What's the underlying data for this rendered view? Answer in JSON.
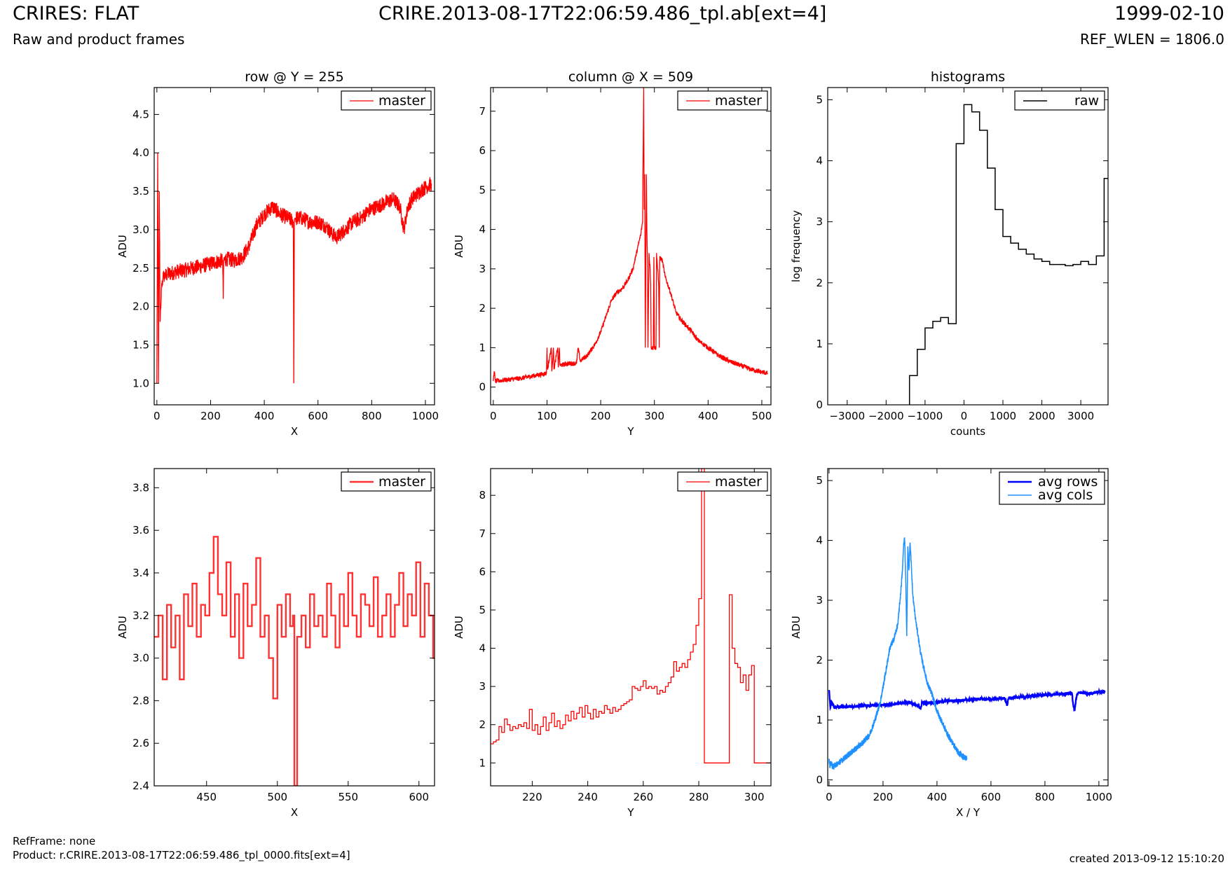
{
  "header": {
    "title": "CRIRES: FLAT",
    "subtitle": "Raw and product frames",
    "filename": "CRIRE.2013-08-17T22:06:59.486_tpl.ab[ext=4]",
    "date": "1999-02-10",
    "ref_wlen": "REF_WLEN = 1806.0"
  },
  "footer": {
    "refframe": "RefFrame: none",
    "product": "Product: r.CRIRE.2013-08-17T22:06:59.486_tpl_0000.fits[ext=4]",
    "created": "created 2013-09-12 15:10:20"
  },
  "colors": {
    "master": "#ff0000",
    "master_zoom": "#ff3333",
    "raw": "#000000",
    "avg_rows": "#0000ff",
    "avg_cols": "#1e90ff"
  },
  "chart_data": [
    {
      "id": "row",
      "type": "line",
      "title": "row @ Y = 255",
      "xlabel": "X",
      "ylabel": "ADU",
      "xlim": [
        -10,
        1034
      ],
      "ylim": [
        0.72,
        4.85
      ],
      "xticks": [
        0,
        200,
        400,
        600,
        800,
        1000
      ],
      "yticks": [
        1.0,
        1.5,
        2.0,
        2.5,
        3.0,
        3.5,
        4.0,
        4.5
      ],
      "ytick_decimals": 1,
      "legend": "upper right",
      "series": [
        {
          "name": "master",
          "color": "#ff0000",
          "style": "line",
          "stroke_width": 1.3,
          "x": [
            0,
            3,
            6,
            9,
            12,
            15,
            18,
            22,
            26,
            30,
            40,
            60,
            80,
            100,
            130,
            160,
            190,
            220,
            245,
            247,
            249,
            260,
            290,
            320,
            345,
            370,
            400,
            430,
            460,
            490,
            508,
            510,
            512,
            514,
            516,
            540,
            570,
            600,
            630,
            650,
            670,
            700,
            730,
            760,
            790,
            820,
            850,
            880,
            905,
            920,
            935,
            950,
            980,
            1000,
            1023
          ],
          "y": [
            1.0,
            4.0,
            1.0,
            3.5,
            1.8,
            2.0,
            2.3,
            2.35,
            2.4,
            2.4,
            2.42,
            2.44,
            2.46,
            2.47,
            2.5,
            2.52,
            2.55,
            2.58,
            2.6,
            2.1,
            2.6,
            2.62,
            2.6,
            2.65,
            2.8,
            3.05,
            3.2,
            3.3,
            3.2,
            3.15,
            3.1,
            1.0,
            3.1,
            3.15,
            3.15,
            3.15,
            3.1,
            3.1,
            3.05,
            2.95,
            2.9,
            3.0,
            3.1,
            3.15,
            3.25,
            3.3,
            3.35,
            3.4,
            3.3,
            3.0,
            3.3,
            3.4,
            3.5,
            3.55,
            3.6
          ],
          "noise": 0.1
        }
      ]
    },
    {
      "id": "column",
      "type": "line",
      "title": "column @ X = 509",
      "xlabel": "Y",
      "ylabel": "ADU",
      "xlim": [
        -5,
        517
      ],
      "ylim": [
        -0.45,
        7.6
      ],
      "xticks": [
        0,
        100,
        200,
        300,
        400,
        500
      ],
      "yticks": [
        0,
        1,
        2,
        3,
        4,
        5,
        6,
        7
      ],
      "ytick_decimals": 0,
      "legend": "upper right",
      "series": [
        {
          "name": "master",
          "color": "#ff0000",
          "style": "line",
          "stroke_width": 1.3,
          "x": [
            0,
            2,
            4,
            20,
            50,
            80,
            99,
            100,
            101,
            108,
            109,
            112,
            113,
            120,
            121,
            123,
            124,
            140,
            155,
            158,
            162,
            165,
            175,
            190,
            200,
            210,
            220,
            230,
            240,
            250,
            260,
            265,
            270,
            275,
            278,
            280,
            281,
            282,
            283,
            285,
            286,
            287,
            288,
            290,
            292,
            293,
            294,
            298,
            299,
            300,
            303,
            304,
            308,
            309,
            310,
            315,
            320,
            330,
            340,
            350,
            360,
            370,
            380,
            400,
            420,
            440,
            460,
            480,
            500,
            511
          ],
          "y": [
            0.15,
            0.4,
            0.15,
            0.18,
            0.22,
            0.3,
            0.35,
            1.0,
            0.45,
            1.0,
            0.4,
            1.0,
            0.45,
            1.0,
            0.5,
            1.0,
            0.55,
            0.6,
            0.6,
            1.0,
            0.65,
            0.7,
            0.8,
            1.1,
            1.4,
            1.8,
            2.2,
            2.4,
            2.5,
            2.7,
            3.0,
            3.3,
            3.6,
            3.9,
            4.2,
            7.6,
            4.5,
            5.4,
            1.0,
            5.4,
            4.0,
            3.3,
            1.0,
            3.4,
            3.0,
            2.6,
            1.0,
            1.0,
            3.3,
            1.0,
            1.0,
            3.4,
            2.6,
            1.0,
            3.3,
            3.2,
            2.8,
            2.4,
            1.9,
            1.7,
            1.55,
            1.4,
            1.2,
            1.0,
            0.8,
            0.65,
            0.55,
            0.45,
            0.38,
            0.35
          ],
          "noise": 0.06
        }
      ]
    },
    {
      "id": "hist",
      "type": "bar",
      "title": "histograms",
      "xlabel": "counts",
      "ylabel": "log frequency",
      "xlim": [
        -3500,
        3700
      ],
      "ylim": [
        0,
        5.2
      ],
      "xticks": [
        -3000,
        -2000,
        -1000,
        0,
        1000,
        2000,
        3000
      ],
      "yticks": [
        0,
        1,
        2,
        3,
        4,
        5
      ],
      "ytick_decimals": 0,
      "legend": "upper right",
      "series": [
        {
          "name": "raw",
          "color": "#000000",
          "style": "steps",
          "stroke_width": 1.5,
          "edges": [
            -1400,
            -1200,
            -1000,
            -800,
            -600,
            -400,
            -200,
            0,
            200,
            400,
            600,
            800,
            1000,
            1200,
            1400,
            1600,
            1800,
            2000,
            2200,
            2400,
            2600,
            2800,
            3000,
            3200,
            3400,
            3600
          ],
          "values": [
            0.48,
            0.91,
            1.26,
            1.37,
            1.43,
            1.33,
            4.28,
            4.92,
            4.8,
            4.5,
            3.88,
            3.2,
            2.76,
            2.65,
            2.55,
            2.47,
            2.39,
            2.35,
            2.3,
            2.3,
            2.28,
            2.3,
            2.35,
            2.3,
            2.44,
            3.71
          ]
        }
      ]
    },
    {
      "id": "row_zoom",
      "type": "line",
      "title": "",
      "xlabel": "X",
      "ylabel": "ADU",
      "xlim": [
        413,
        611
      ],
      "ylim": [
        2.4,
        3.89
      ],
      "xticks": [
        450,
        500,
        550,
        600
      ],
      "yticks": [
        2.4,
        2.6,
        2.8,
        3.0,
        3.2,
        3.4,
        3.6,
        3.8
      ],
      "ytick_decimals": 1,
      "legend": "upper right",
      "series": [
        {
          "name": "master",
          "color": "#ff3333",
          "style": "steps",
          "stroke_width": 2.4,
          "x": [
            413,
            416,
            419,
            422,
            425,
            428,
            431,
            434,
            437,
            440,
            443,
            446,
            449,
            452,
            455,
            458,
            461,
            464,
            467,
            470,
            473,
            476,
            479,
            482,
            485,
            488,
            491,
            494,
            497,
            500,
            503,
            506,
            509,
            511,
            512,
            514,
            517,
            520,
            523,
            526,
            529,
            532,
            535,
            538,
            541,
            544,
            547,
            550,
            553,
            556,
            559,
            562,
            565,
            568,
            571,
            574,
            577,
            580,
            583,
            586,
            589,
            592,
            595,
            598,
            601,
            604,
            607,
            610
          ],
          "y": [
            3.1,
            3.2,
            2.9,
            3.25,
            3.05,
            3.2,
            2.9,
            3.3,
            3.15,
            3.35,
            3.1,
            3.25,
            3.2,
            3.4,
            3.57,
            3.3,
            3.2,
            3.45,
            3.1,
            3.3,
            3.0,
            3.35,
            3.15,
            3.25,
            3.47,
            3.1,
            3.2,
            3.0,
            2.81,
            3.25,
            3.1,
            3.3,
            3.15,
            3.2,
            2.4,
            3.1,
            3.2,
            3.05,
            3.3,
            3.15,
            3.2,
            3.1,
            3.35,
            3.2,
            3.05,
            3.3,
            3.15,
            3.4,
            3.2,
            3.1,
            3.3,
            3.25,
            3.15,
            3.38,
            3.1,
            3.2,
            3.3,
            3.1,
            3.25,
            3.4,
            3.15,
            3.3,
            3.2,
            3.45,
            3.1,
            3.35,
            3.2,
            3.0
          ]
        }
      ]
    },
    {
      "id": "column_zoom",
      "type": "line",
      "title": "",
      "xlabel": "Y",
      "ylabel": "ADU",
      "xlim": [
        205,
        306
      ],
      "ylim": [
        0.4,
        8.7
      ],
      "xticks": [
        220,
        240,
        260,
        280,
        300
      ],
      "yticks": [
        1,
        2,
        3,
        4,
        5,
        6,
        7,
        8
      ],
      "ytick_decimals": 0,
      "legend": "upper right",
      "series": [
        {
          "name": "master",
          "color": "#ff0000",
          "style": "steps",
          "stroke_width": 1.3,
          "x": [
            205,
            206,
            207,
            208,
            209,
            210,
            211,
            212,
            213,
            214,
            215,
            216,
            217,
            218,
            219,
            220,
            221,
            222,
            223,
            224,
            225,
            226,
            227,
            228,
            229,
            230,
            231,
            232,
            233,
            234,
            235,
            236,
            237,
            238,
            239,
            240,
            241,
            242,
            243,
            244,
            245,
            246,
            247,
            248,
            249,
            250,
            251,
            252,
            253,
            254,
            255,
            256,
            257,
            258,
            259,
            260,
            261,
            262,
            263,
            264,
            265,
            266,
            267,
            268,
            269,
            270,
            271,
            272,
            273,
            274,
            275,
            276,
            277,
            278,
            279,
            280,
            281,
            282,
            283,
            284,
            285,
            286,
            287,
            288,
            289,
            290,
            291,
            292,
            293,
            294,
            295,
            296,
            297,
            298,
            299,
            300,
            301,
            302,
            303,
            304,
            305
          ],
          "y": [
            1.5,
            1.55,
            1.6,
            1.95,
            1.8,
            2.15,
            2.0,
            1.85,
            1.95,
            1.9,
            2.0,
            1.95,
            2.05,
            1.9,
            2.4,
            1.85,
            2.0,
            1.75,
            1.95,
            2.2,
            1.85,
            2.05,
            2.3,
            1.95,
            2.1,
            1.9,
            2.0,
            2.25,
            2.1,
            2.35,
            2.15,
            2.3,
            2.45,
            2.2,
            2.5,
            2.3,
            2.15,
            2.4,
            2.2,
            2.35,
            2.3,
            2.5,
            2.4,
            2.3,
            2.45,
            2.35,
            2.4,
            2.5,
            2.55,
            2.6,
            2.65,
            3.0,
            2.95,
            2.9,
            3.0,
            3.15,
            2.95,
            3.0,
            2.95,
            3.0,
            2.8,
            2.9,
            2.85,
            3.0,
            3.1,
            3.25,
            3.65,
            3.4,
            3.5,
            3.6,
            3.5,
            3.7,
            3.9,
            4.1,
            4.6,
            5.3,
            8.7,
            1.0,
            1.0,
            1.0,
            1.0,
            1.0,
            1.0,
            1.0,
            1.0,
            1.0,
            5.4,
            4.0,
            3.6,
            3.5,
            3.1,
            3.3,
            2.9,
            3.3,
            3.55,
            1.0,
            1.0,
            1.0,
            1.0,
            1.0,
            1.0
          ]
        }
      ]
    },
    {
      "id": "averages",
      "type": "line",
      "title": "",
      "xlabel": "X / Y",
      "ylabel": "ADU",
      "xlim": [
        -5,
        1034
      ],
      "ylim": [
        -0.1,
        5.2
      ],
      "xticks": [
        0,
        200,
        400,
        600,
        800,
        1000
      ],
      "yticks": [
        0,
        1,
        2,
        3,
        4,
        5
      ],
      "ytick_decimals": 0,
      "legend": "upper right",
      "series": [
        {
          "name": "avg rows",
          "color": "#0000ff",
          "style": "line",
          "stroke_width": 2.4,
          "x": [
            0,
            5,
            10,
            20,
            30,
            60,
            100,
            150,
            200,
            250,
            300,
            340,
            345,
            350,
            400,
            450,
            500,
            550,
            600,
            650,
            660,
            665,
            670,
            700,
            750,
            800,
            850,
            900,
            905,
            910,
            915,
            920,
            930,
            960,
            1000,
            1023
          ],
          "y": [
            1.5,
            1.2,
            1.3,
            1.2,
            1.22,
            1.22,
            1.23,
            1.24,
            1.25,
            1.27,
            1.3,
            1.2,
            1.3,
            1.28,
            1.3,
            1.32,
            1.33,
            1.35,
            1.35,
            1.36,
            1.25,
            1.36,
            1.37,
            1.38,
            1.4,
            1.42,
            1.43,
            1.45,
            1.25,
            1.15,
            1.35,
            1.44,
            1.46,
            1.44,
            1.47,
            1.48
          ],
          "noise": 0.025
        },
        {
          "name": "avg cols",
          "color": "#1e90ff",
          "style": "line",
          "stroke_width": 1.5,
          "x": [
            0,
            3,
            6,
            15,
            40,
            80,
            120,
            150,
            170,
            190,
            210,
            225,
            240,
            255,
            265,
            272,
            276,
            280,
            284,
            288,
            292,
            296,
            300,
            305,
            310,
            320,
            330,
            340,
            350,
            365,
            380,
            400,
            420,
            440,
            460,
            480,
            500,
            511
          ],
          "y": [
            0.35,
            0.2,
            0.28,
            0.22,
            0.3,
            0.45,
            0.6,
            0.75,
            1.0,
            1.3,
            1.8,
            2.2,
            2.35,
            2.6,
            3.1,
            3.5,
            3.9,
            4.05,
            3.4,
            2.4,
            3.9,
            3.5,
            3.95,
            3.6,
            3.1,
            2.7,
            2.4,
            2.1,
            1.9,
            1.6,
            1.45,
            1.15,
            0.95,
            0.75,
            0.6,
            0.45,
            0.38,
            0.35
          ],
          "noise": 0.05
        }
      ]
    }
  ]
}
